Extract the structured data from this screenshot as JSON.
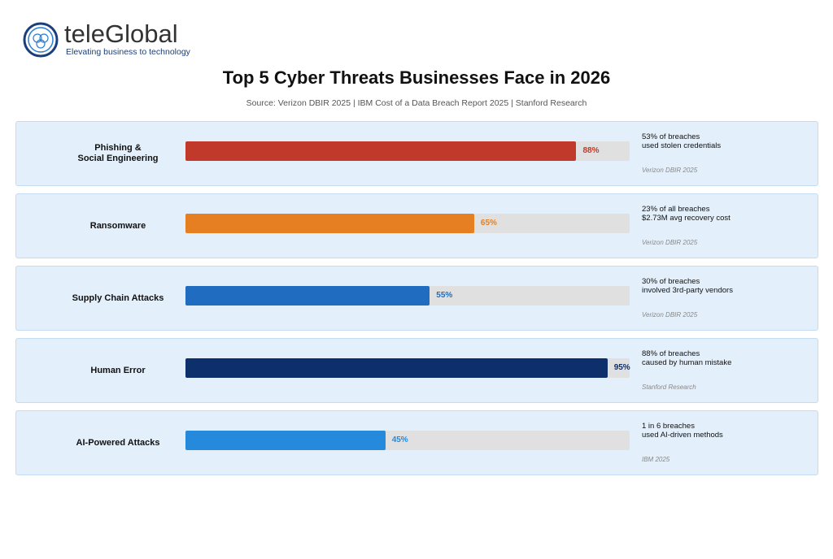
{
  "logo": {
    "name": "teleGlobal",
    "tagline": "Elevating business to technology"
  },
  "chart_data": {
    "type": "bar",
    "orientation": "horizontal",
    "title": "Top 5 Cyber Threats Businesses Face in 2026",
    "subtitle": "Source: Verizon DBIR 2025 | IBM Cost of a Data Breach Report 2025 | Stanford Research",
    "categories": [
      "Phishing &\nSocial Engineering",
      "Ransomware",
      "Supply Chain Attacks",
      "Human Error",
      "AI-Powered Attacks"
    ],
    "values": [
      88,
      65,
      55,
      95,
      45
    ],
    "value_labels": [
      "88%",
      "65%",
      "55%",
      "95%",
      "45%"
    ],
    "colors": [
      "#c0392b",
      "#e67e22",
      "#1f6cc0",
      "#0d2f6b",
      "#2589dc"
    ],
    "label_colors": [
      "#c0392b",
      "#e67e22",
      "#1f6cc0",
      "#0d2f6b",
      "#2589dc"
    ],
    "notes": [
      "53% of breaches\nused stolen credentials",
      "23% of all breaches\n$2.73M avg recovery cost",
      "30% of breaches\ninvolved 3rd-party vendors",
      "88% of breaches\ncaused by human mistake",
      "1 in 6 breaches\nused AI-driven methods"
    ],
    "sources": [
      "Verizon DBIR 2025",
      "Verizon DBIR 2025",
      "Verizon DBIR 2025",
      "Stanford Research",
      "IBM 2025"
    ],
    "xlim": [
      0,
      100
    ]
  }
}
